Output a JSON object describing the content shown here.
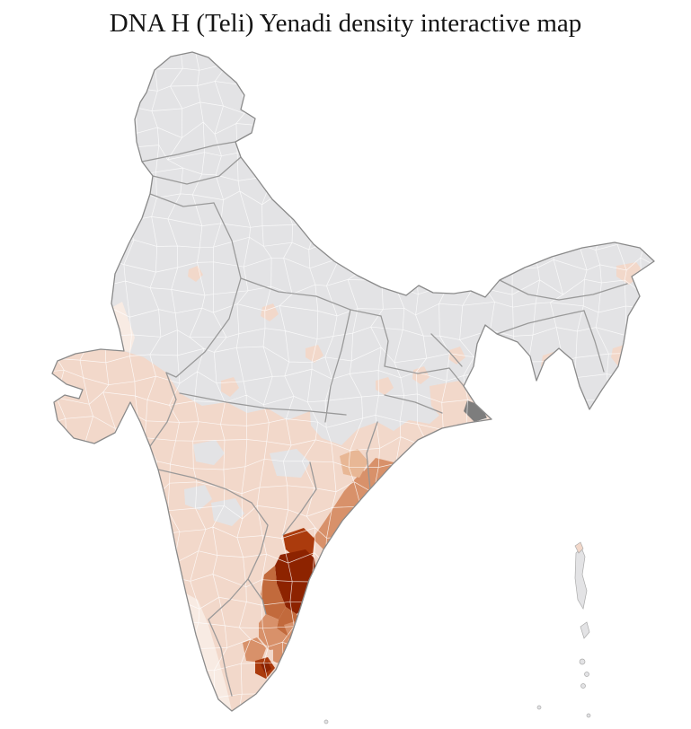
{
  "title": "DNA H (Teli) Yenadi density interactive map",
  "map": {
    "type": "choropleth",
    "subject": "DNA H (Teli) Yenadi density",
    "area": "India, district level",
    "background": "#ffffff",
    "colors": {
      "no_data": "#e3e3e5",
      "faint": "#f8ebe3",
      "very_low": "#f2d8ca",
      "low": "#e8b795",
      "medium": "#d8916a",
      "medium_high": "#c26a3c",
      "high": "#ab3b0d",
      "very_high": "#8d2300",
      "urban_dark": "#7d7d7d",
      "district_border": "#ffffff",
      "state_border": "#969696",
      "country_border": "#8a8a8a"
    },
    "regions": [
      {
        "id": "mainland",
        "level": "no_data"
      },
      {
        "id": "peninsular-south",
        "level": "very_low"
      },
      {
        "id": "west-rajasthan",
        "level": "faint"
      },
      {
        "id": "kerala-coast",
        "level": "faint"
      },
      {
        "id": "bengal-delta",
        "level": "very_low"
      },
      {
        "id": "kolkata-metro",
        "level": "urban_dark"
      },
      {
        "id": "tripura",
        "level": "very_low"
      },
      {
        "id": "upper-assam",
        "level": "very_low"
      },
      {
        "id": "manipur-patch",
        "level": "very_low"
      },
      {
        "id": "scattered-north-districts",
        "level": "very_low"
      },
      {
        "id": "interior-gray-districts",
        "level": "no_data"
      },
      {
        "id": "coastal-andhra-strip",
        "level": "medium"
      },
      {
        "id": "south-odisha-patch",
        "level": "medium"
      },
      {
        "id": "west-odisha-patch",
        "level": "low"
      },
      {
        "id": "krishna-guntur",
        "level": "high"
      },
      {
        "id": "nellore-prakasam-core",
        "level": "very_high"
      },
      {
        "id": "rayalaseema-east",
        "level": "medium_high"
      },
      {
        "id": "south-nellore",
        "level": "medium_high"
      },
      {
        "id": "chittoor-area",
        "level": "medium"
      },
      {
        "id": "tamilnadu-west-patch",
        "level": "medium"
      },
      {
        "id": "tamilnadu-east-patch",
        "level": "medium"
      },
      {
        "id": "tamilnadu-coast-patch",
        "level": "medium"
      },
      {
        "id": "madurai-cluster",
        "level": "high"
      },
      {
        "id": "madurai-core",
        "level": "very_high"
      },
      {
        "id": "andaman-islands",
        "level": "no_data"
      },
      {
        "id": "andaman-north-tip",
        "level": "very_low"
      },
      {
        "id": "little-andaman",
        "level": "no_data"
      },
      {
        "id": "nicobar-islands",
        "level": "no_data"
      },
      {
        "id": "offshore-specks",
        "level": "no_data"
      }
    ]
  }
}
